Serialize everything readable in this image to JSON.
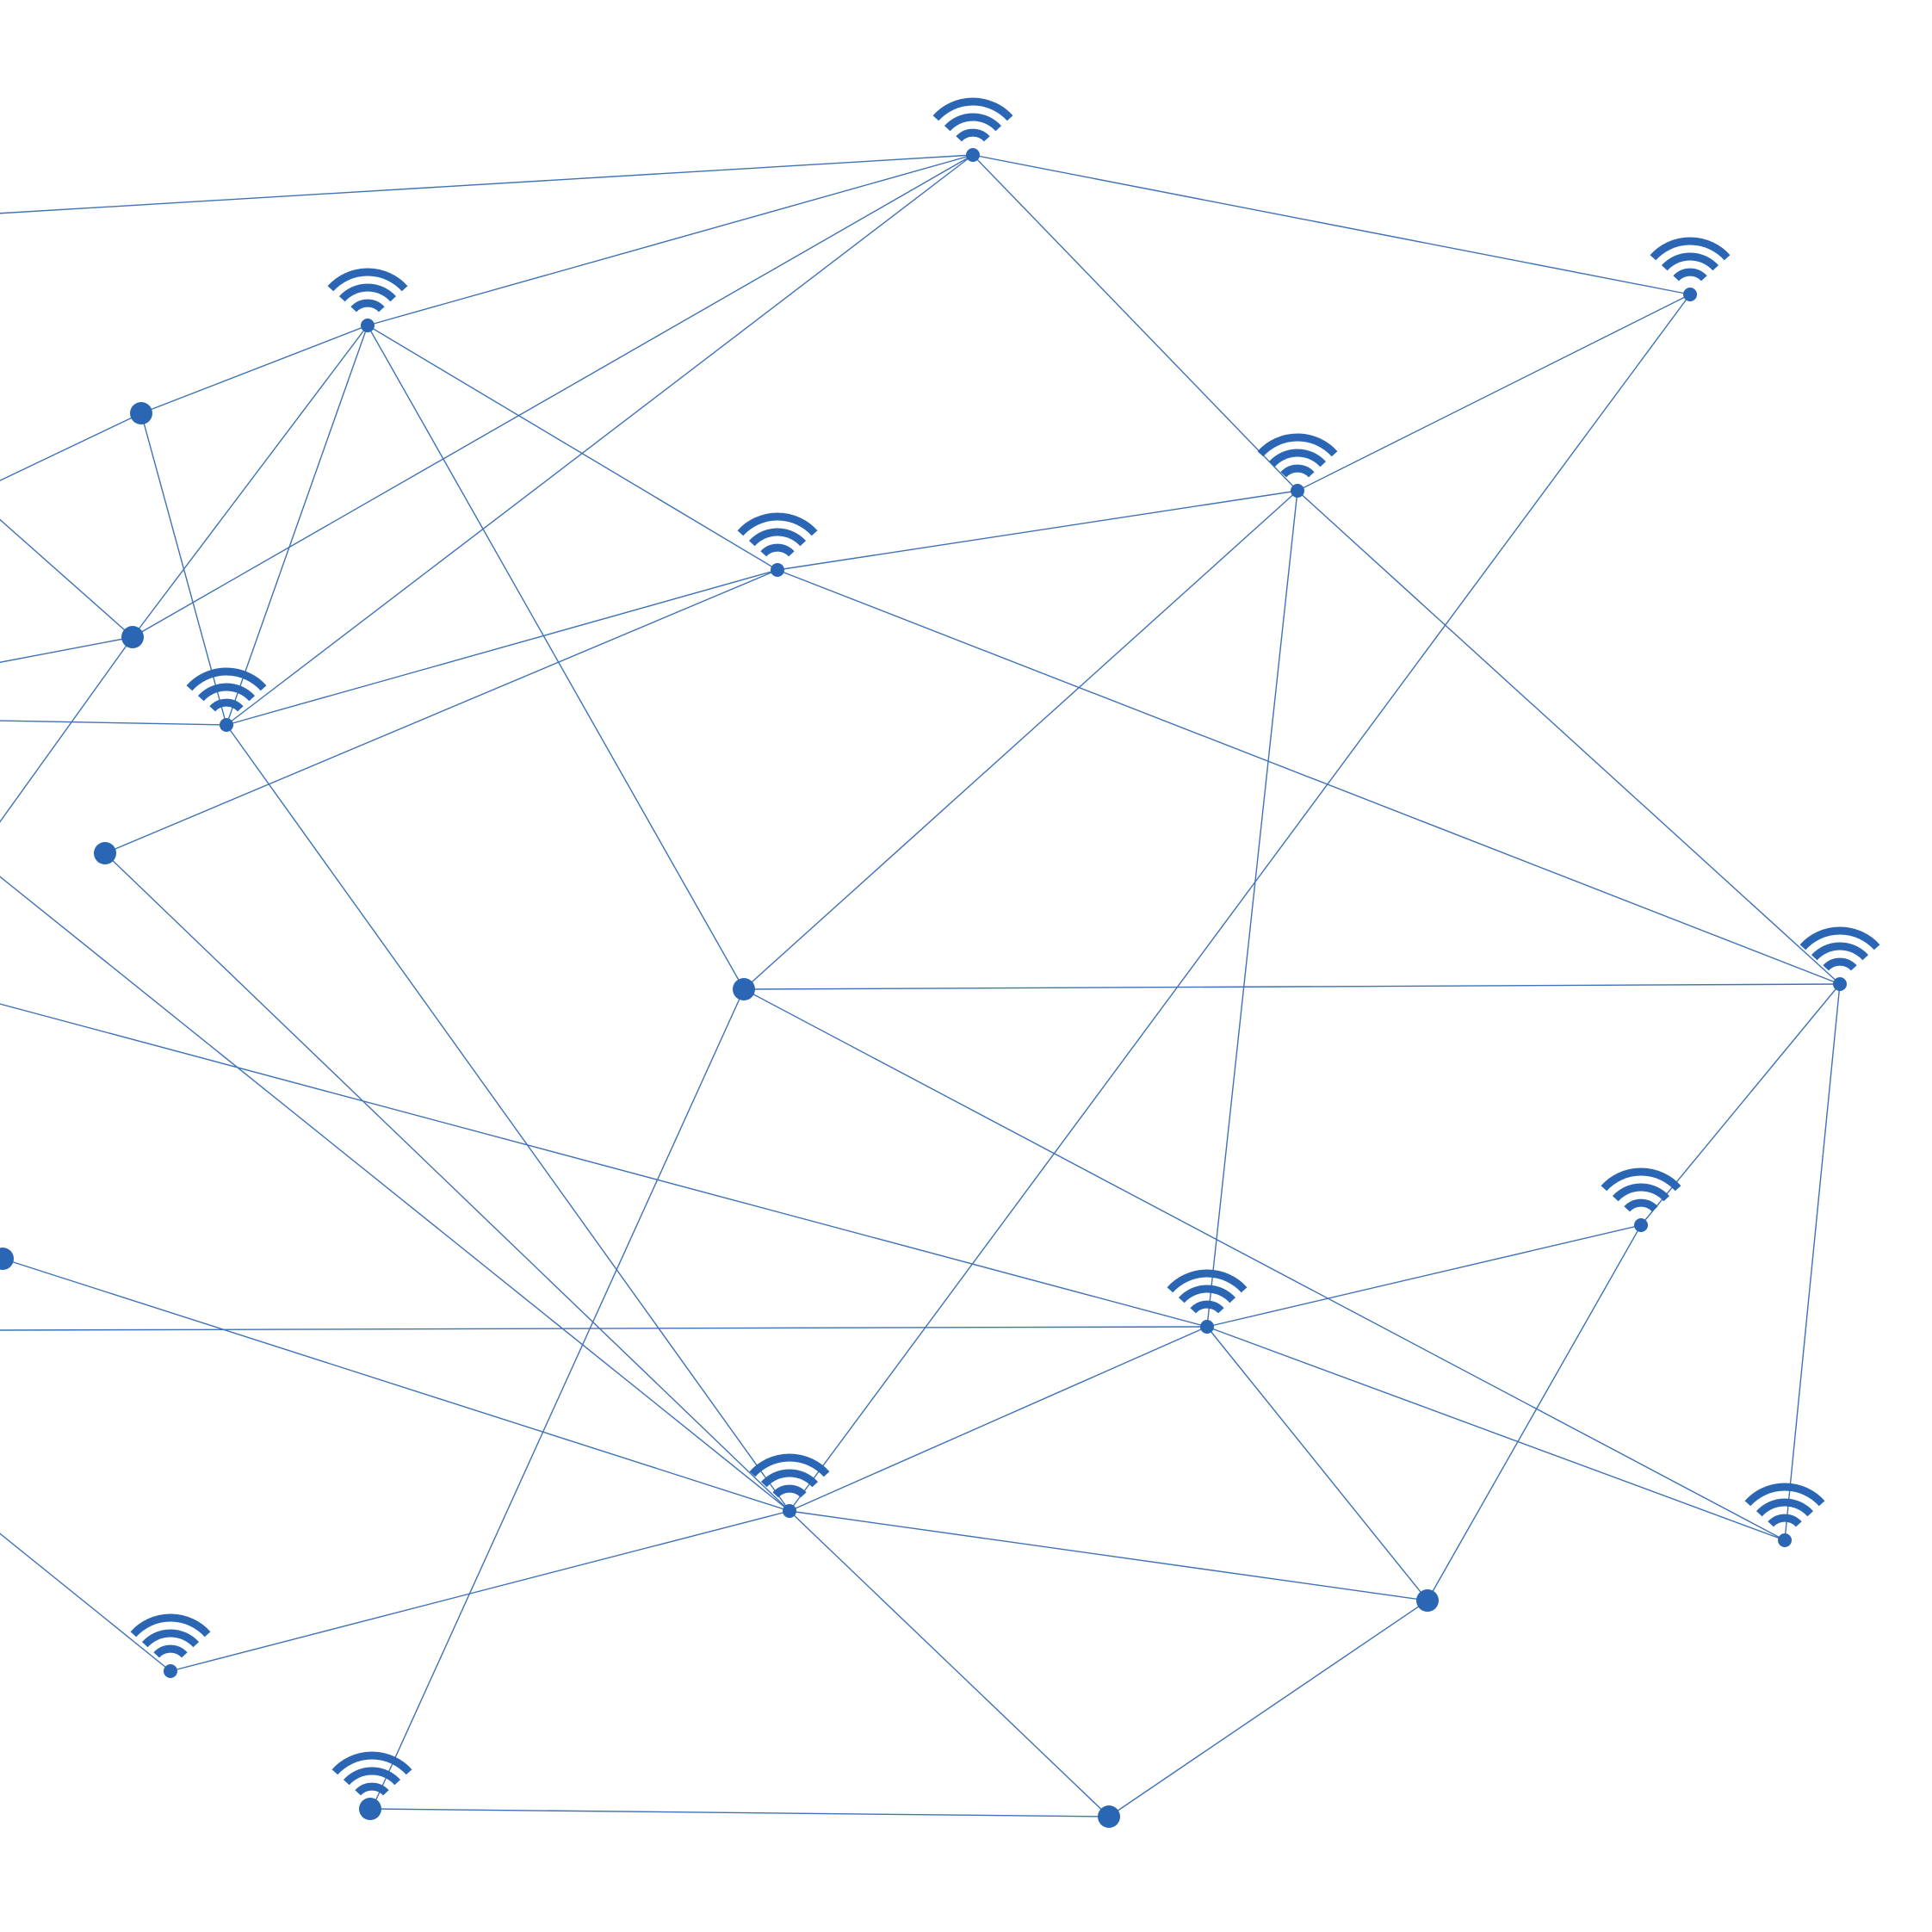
{
  "colors": {
    "background": "#ffffff",
    "accent": "#2a66b3",
    "link": "#3f72b8"
  },
  "network": {
    "icon_name": "wifi-icon",
    "node_count": 28,
    "link_count": 68
  }
}
